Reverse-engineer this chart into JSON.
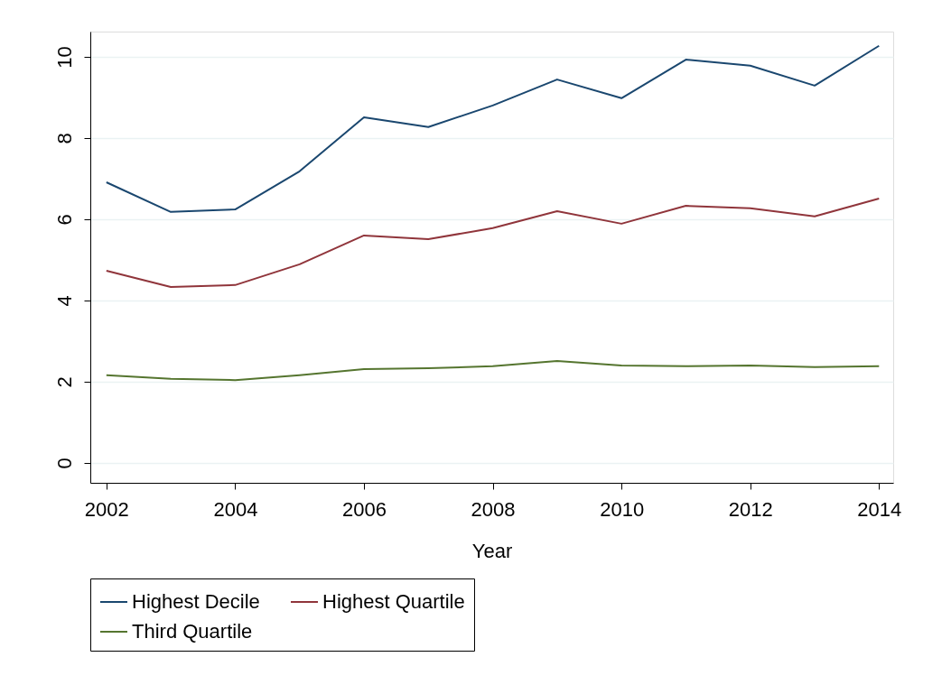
{
  "chart_data": {
    "type": "line",
    "xlabel": "Year",
    "x": [
      2002,
      2003,
      2004,
      2005,
      2006,
      2007,
      2008,
      2009,
      2010,
      2011,
      2012,
      2013,
      2014
    ],
    "series": [
      {
        "name": "Highest Decile",
        "color": "#1a476f",
        "values": [
          6.91,
          6.18,
          6.24,
          7.18,
          8.51,
          8.27,
          8.8,
          9.44,
          8.98,
          9.93,
          9.78,
          9.29,
          10.27
        ]
      },
      {
        "name": "Highest Quartile",
        "color": "#90353b",
        "values": [
          4.73,
          4.33,
          4.38,
          4.89,
          5.6,
          5.51,
          5.78,
          6.2,
          5.89,
          6.33,
          6.27,
          6.07,
          6.51
        ]
      },
      {
        "name": "Third Quartile",
        "color": "#55752f",
        "values": [
          2.16,
          2.07,
          2.04,
          2.16,
          2.31,
          2.33,
          2.38,
          2.51,
          2.4,
          2.38,
          2.4,
          2.36,
          2.38
        ]
      }
    ],
    "xlim": [
      2001.75,
      2014.22
    ],
    "xticks": [
      2002,
      2004,
      2006,
      2008,
      2010,
      2012,
      2014
    ],
    "ylim": [
      -0.49,
      10.62
    ],
    "yticks": [
      0,
      2,
      4,
      6,
      8,
      10
    ],
    "grid": "y",
    "legend": "bottom",
    "marker": "none",
    "line_style": "solid"
  }
}
